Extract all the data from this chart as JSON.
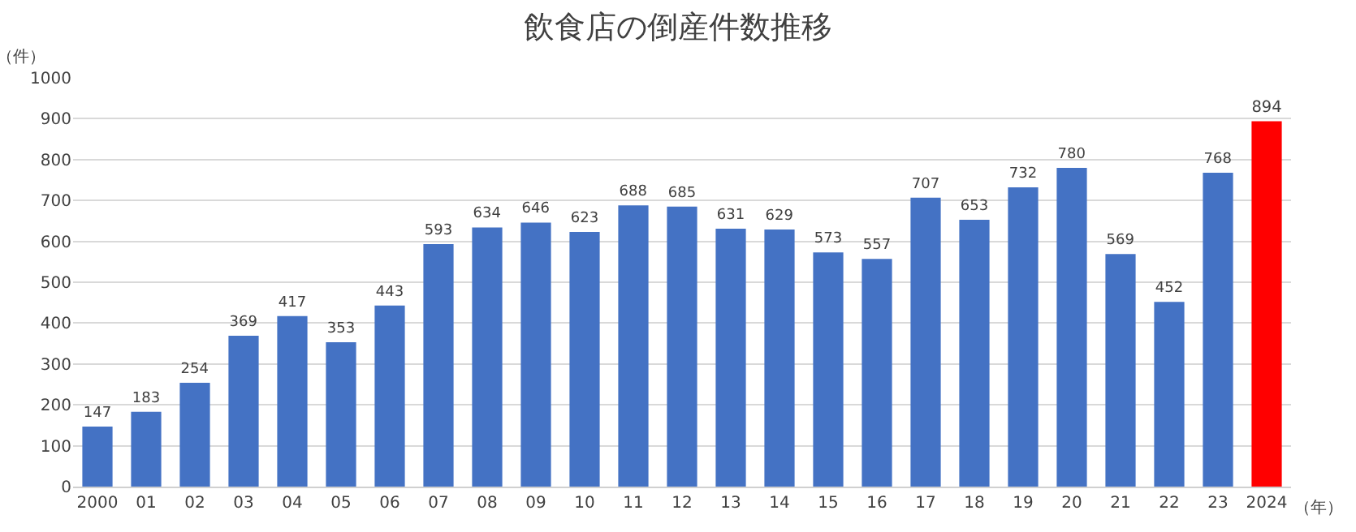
{
  "chart_data": {
    "type": "bar",
    "title": "飲食店の倒産件数推移",
    "xlabel": "（年）",
    "ylabel": "（件）",
    "categories": [
      "2000",
      "01",
      "02",
      "03",
      "04",
      "05",
      "06",
      "07",
      "08",
      "09",
      "10",
      "11",
      "12",
      "13",
      "14",
      "15",
      "16",
      "17",
      "18",
      "19",
      "20",
      "21",
      "22",
      "23",
      "2024"
    ],
    "values": [
      147,
      183,
      254,
      369,
      417,
      353,
      443,
      593,
      634,
      646,
      623,
      688,
      685,
      631,
      629,
      573,
      557,
      707,
      653,
      732,
      780,
      569,
      452,
      768,
      894
    ],
    "colors": [
      "#4472c4",
      "#4472c4",
      "#4472c4",
      "#4472c4",
      "#4472c4",
      "#4472c4",
      "#4472c4",
      "#4472c4",
      "#4472c4",
      "#4472c4",
      "#4472c4",
      "#4472c4",
      "#4472c4",
      "#4472c4",
      "#4472c4",
      "#4472c4",
      "#4472c4",
      "#4472c4",
      "#4472c4",
      "#4472c4",
      "#4472c4",
      "#4472c4",
      "#4472c4",
      "#4472c4",
      "#ff0000"
    ],
    "data_labels": true,
    "ylim": [
      0,
      1000
    ],
    "yticks": [
      0,
      100,
      200,
      300,
      400,
      500,
      600,
      700,
      800,
      900,
      1000
    ],
    "grid": "y",
    "legend": false
  }
}
